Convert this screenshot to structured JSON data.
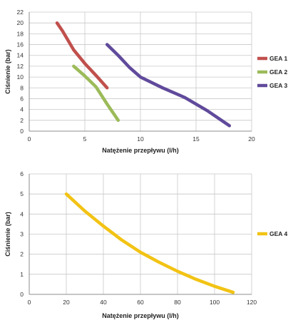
{
  "chart_data": [
    {
      "type": "line",
      "xlabel": "Natężenie przepływu (l/h)",
      "ylabel": "Ciśnienie (bar)",
      "xlim": [
        0,
        20
      ],
      "ylim": [
        0,
        22
      ],
      "xticks": [
        0,
        5,
        10,
        15,
        20
      ],
      "yticks": [
        0,
        2,
        4,
        6,
        8,
        10,
        12,
        14,
        16,
        18,
        20,
        22
      ],
      "grid": true,
      "legend": "right",
      "series": [
        {
          "name": "GEA 1",
          "color": "#c0504d",
          "x": [
            2.5,
            3,
            4,
            5,
            6,
            7
          ],
          "y": [
            20,
            18.5,
            15,
            12.5,
            10.3,
            8
          ]
        },
        {
          "name": "GEA 2",
          "color": "#9bbb59",
          "x": [
            4,
            5,
            6,
            7,
            8
          ],
          "y": [
            12,
            10.2,
            8.2,
            5,
            2
          ]
        },
        {
          "name": "GEA 3",
          "color": "#604a9b",
          "x": [
            7,
            8,
            9,
            10,
            12,
            14,
            16,
            18
          ],
          "y": [
            16,
            14,
            11.8,
            10,
            8,
            6.2,
            3.8,
            1
          ]
        }
      ]
    },
    {
      "type": "line",
      "xlabel": "Natężenie przepływu (l/h)",
      "ylabel": "Ciśnienie (bar)",
      "xlim": [
        0,
        120
      ],
      "ylim": [
        0,
        6
      ],
      "xticks": [
        0,
        20,
        40,
        60,
        80,
        100,
        120
      ],
      "yticks": [
        0,
        1,
        2,
        3,
        4,
        5,
        6
      ],
      "grid": true,
      "legend": "right",
      "series": [
        {
          "name": "GEA 4",
          "color": "#f2c314",
          "x": [
            20,
            30,
            40,
            50,
            60,
            70,
            80,
            90,
            100,
            110
          ],
          "y": [
            5,
            4.15,
            3.4,
            2.7,
            2.1,
            1.6,
            1.15,
            0.75,
            0.4,
            0.1
          ]
        }
      ]
    }
  ]
}
